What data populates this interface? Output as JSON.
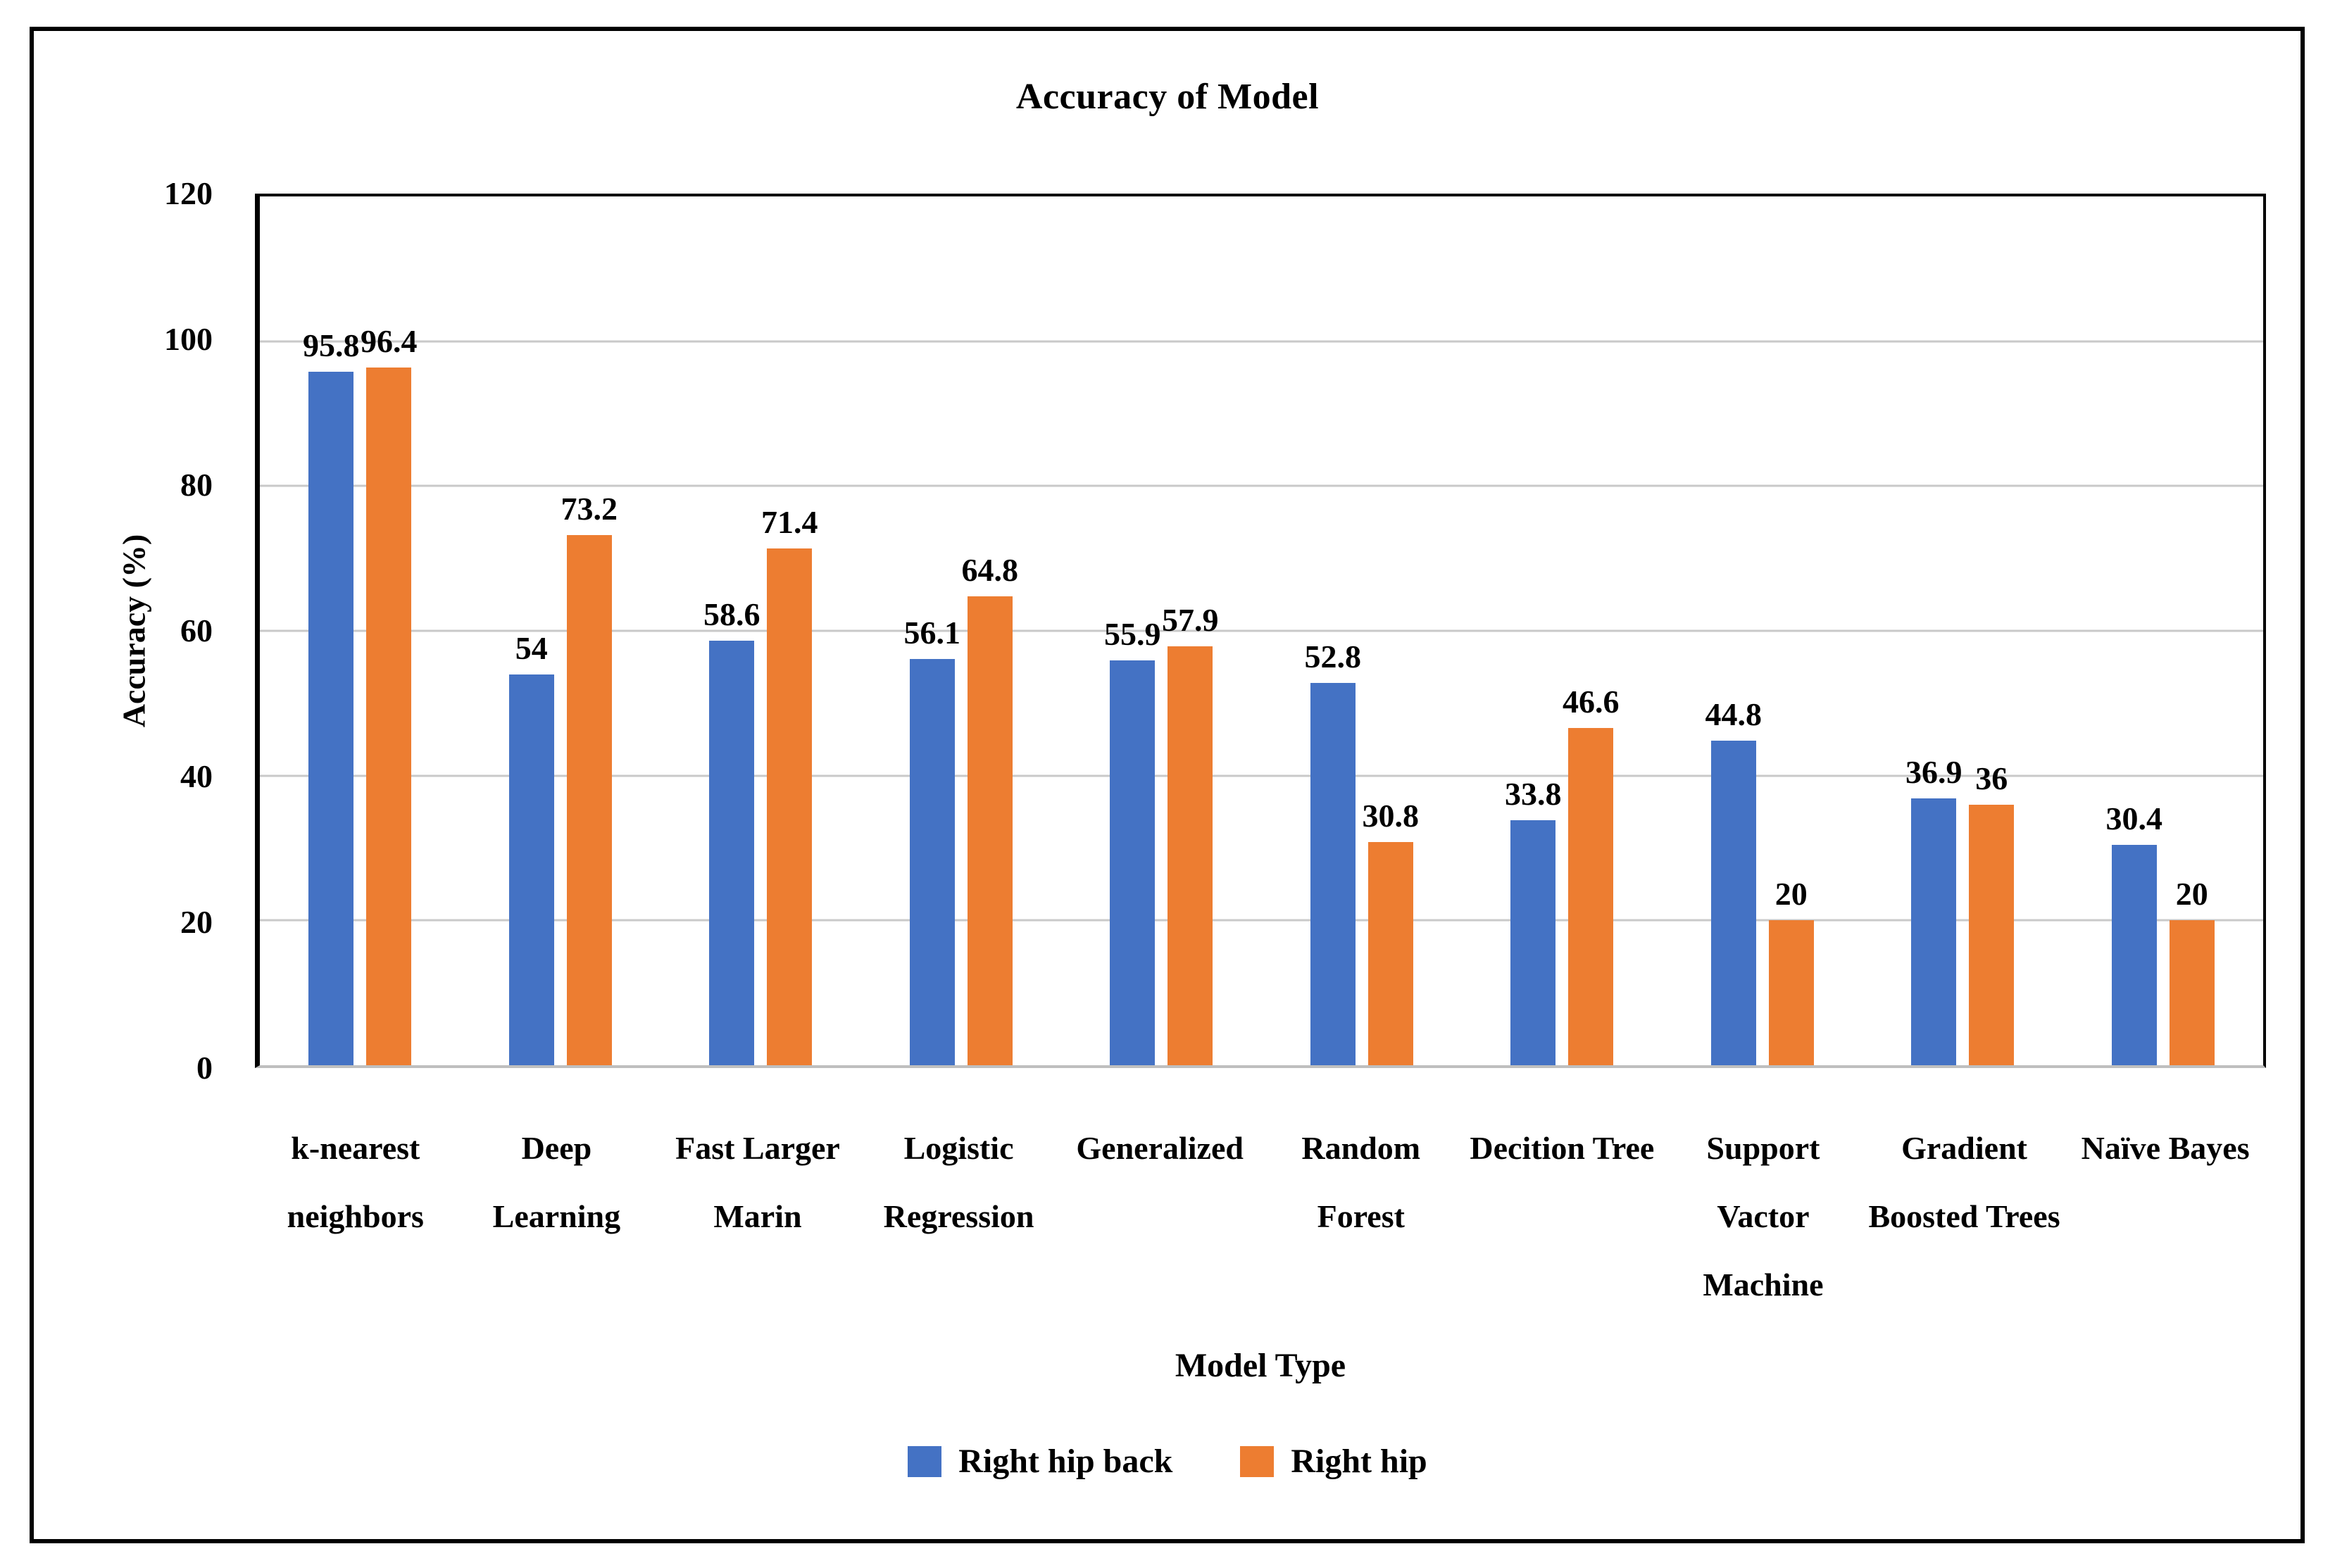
{
  "frame": {
    "border_color": "#000000",
    "background": "#ffffff"
  },
  "chart_data": {
    "type": "bar",
    "title": "Accuracy of Model",
    "xlabel": "Model Type",
    "ylabel": "Accuracy (%)",
    "ylim": [
      0,
      120
    ],
    "yticks": [
      0,
      20,
      40,
      60,
      80,
      100,
      120
    ],
    "grid": true,
    "gridline_color": "#c9c9c9",
    "axis_line_color": "#000000",
    "baseline_color": "#bfbfbf",
    "legend_position": "bottom",
    "data_labels": "outside-end",
    "categories": [
      "k-nearest neighbors",
      "Deep Learning",
      "Fast Larger Marin",
      "Logistic Regression",
      "Generalized",
      "Random Forest",
      "Decition Tree",
      "Support Vactor Machine",
      "Gradient Boosted Trees",
      "Naïve Bayes"
    ],
    "category_label_lines": [
      [
        "k-nearest",
        "neighbors"
      ],
      [
        "Deep",
        "Learning"
      ],
      [
        "Fast Larger",
        "Marin"
      ],
      [
        "Logistic",
        "Regression"
      ],
      [
        "Generalized"
      ],
      [
        "Random",
        "Forest"
      ],
      [
        "Decition Tree"
      ],
      [
        "Support",
        "Vactor",
        "Machine"
      ],
      [
        "Gradient",
        "Boosted Trees"
      ],
      [
        "Naïve Bayes"
      ]
    ],
    "series": [
      {
        "name": "Right hip back",
        "color": "#4472c4",
        "values": [
          95.8,
          54,
          58.6,
          56.1,
          55.9,
          52.8,
          33.8,
          44.8,
          36.9,
          30.4
        ],
        "labels": [
          "95.8",
          "54",
          "58.6",
          "56.1",
          "55.9",
          "52.8",
          "33.8",
          "44.8",
          "36.9",
          "30.4"
        ]
      },
      {
        "name": "Right hip",
        "color": "#ed7d31",
        "values": [
          96.4,
          73.2,
          71.4,
          64.8,
          57.9,
          30.8,
          46.6,
          20,
          36,
          20
        ],
        "labels": [
          "96.4",
          "73.2",
          "71.4",
          "64.8",
          "57.9",
          "30.8",
          "46.6",
          "20",
          "36",
          "20"
        ]
      }
    ]
  }
}
